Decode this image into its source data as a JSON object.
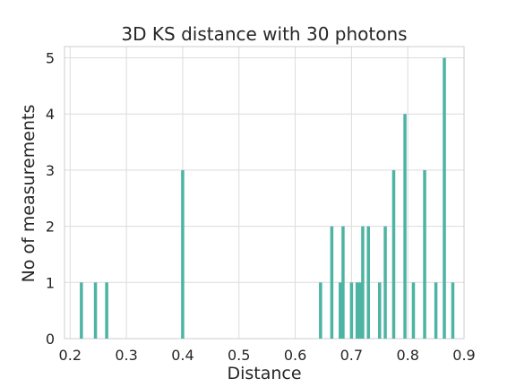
{
  "chart_data": {
    "type": "bar",
    "title": "3D KS distance with 30 photons",
    "xlabel": "Distance",
    "ylabel": "No of measurements",
    "xlim": [
      0.19,
      0.9
    ],
    "ylim": [
      0,
      5.2
    ],
    "xticks": [
      "0.2",
      "0.3",
      "0.4",
      "0.5",
      "0.6",
      "0.7",
      "0.8",
      "0.9"
    ],
    "yticks": [
      "0",
      "1",
      "2",
      "3",
      "4",
      "5"
    ],
    "grid": true,
    "color": "#4cb4a3",
    "x": [
      0.22,
      0.245,
      0.265,
      0.4,
      0.645,
      0.665,
      0.68,
      0.685,
      0.7,
      0.71,
      0.715,
      0.72,
      0.73,
      0.75,
      0.76,
      0.775,
      0.795,
      0.81,
      0.83,
      0.85,
      0.865,
      0.88
    ],
    "values": [
      1,
      1,
      1,
      3,
      1,
      2,
      1,
      2,
      1,
      1,
      1,
      2,
      2,
      1,
      2,
      3,
      4,
      1,
      3,
      1,
      5,
      1
    ]
  }
}
